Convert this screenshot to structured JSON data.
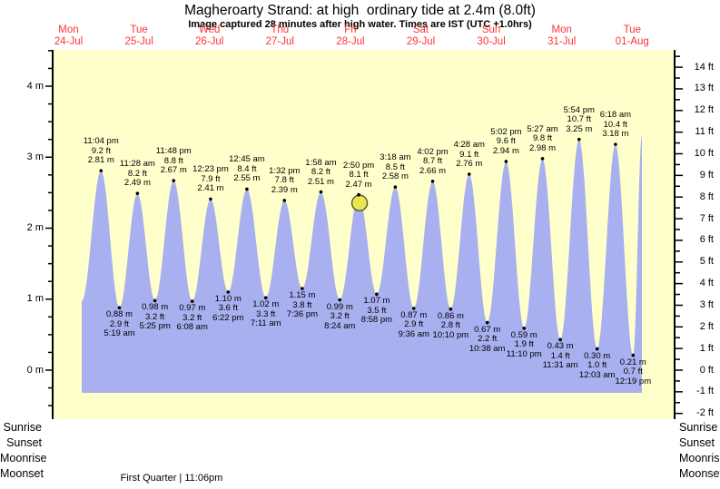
{
  "chart_data": {
    "type": "area",
    "title": "Magheroarty Strand: at high  ordinary tide at 2.4m (8.0ft)",
    "subtitle": "Image captured 28 minutes after high water. Times are IST (UTC +1.0hrs)",
    "days": [
      {
        "dow": "Mon",
        "date": "24-Jul"
      },
      {
        "dow": "Tue",
        "date": "25-Jul"
      },
      {
        "dow": "Wed",
        "date": "26-Jul"
      },
      {
        "dow": "Thu",
        "date": "27-Jul"
      },
      {
        "dow": "Fri",
        "date": "28-Jul"
      },
      {
        "dow": "Sat",
        "date": "29-Jul"
      },
      {
        "dow": "Sun",
        "date": "30-Jul"
      },
      {
        "dow": "Mon",
        "date": "31-Jul"
      },
      {
        "dow": "Tue",
        "date": "01-Aug"
      }
    ],
    "y_axis_left": {
      "unit": "m",
      "tick_labels": [
        "4 m",
        "3 m",
        "2 m",
        "1 m",
        "0 m"
      ],
      "tick_values": [
        4,
        3,
        2,
        1,
        0
      ],
      "minor_step_m": 0.25
    },
    "y_axis_right": {
      "unit": "ft",
      "tick_labels": [
        "14 ft",
        "13 ft",
        "12 ft",
        "11 ft",
        "10 ft",
        "9 ft",
        "8 ft",
        "7 ft",
        "6 ft",
        "5 ft",
        "4 ft",
        "3 ft",
        "2 ft",
        "1 ft",
        "0 ft",
        "-1 ft",
        "-2 ft"
      ],
      "tick_values": [
        14,
        13,
        12,
        11,
        10,
        9,
        8,
        7,
        6,
        5,
        4,
        3,
        2,
        1,
        0,
        -1,
        -2
      ],
      "minor_step_ft": 0.5
    },
    "tide_events": [
      {
        "day": 0,
        "time": "11:04 pm",
        "type": "high",
        "height_m": "2.81",
        "height_ft": "9.2"
      },
      {
        "day": 1,
        "time": "5:19 am",
        "type": "low",
        "height_m": "0.88",
        "height_ft": "2.9"
      },
      {
        "day": 1,
        "time": "11:28 am",
        "type": "high",
        "height_m": "2.49",
        "height_ft": "8.2"
      },
      {
        "day": 1,
        "time": "5:25 pm",
        "type": "low",
        "height_m": "0.98",
        "height_ft": "3.2"
      },
      {
        "day": 1,
        "time": "11:48 pm",
        "type": "high",
        "height_m": "2.67",
        "height_ft": "8.8"
      },
      {
        "day": 2,
        "time": "6:08 am",
        "type": "low",
        "height_m": "0.97",
        "height_ft": "3.2"
      },
      {
        "day": 2,
        "time": "12:23 pm",
        "type": "high",
        "height_m": "2.41",
        "height_ft": "7.9"
      },
      {
        "day": 2,
        "time": "6:22 pm",
        "type": "low",
        "height_m": "1.10",
        "height_ft": "3.6"
      },
      {
        "day": 3,
        "time": "12:45 am",
        "type": "high",
        "height_m": "2.55",
        "height_ft": "8.4"
      },
      {
        "day": 3,
        "time": "7:11 am",
        "type": "low",
        "height_m": "1.02",
        "height_ft": "3.3"
      },
      {
        "day": 3,
        "time": "1:32 pm",
        "type": "high",
        "height_m": "2.39",
        "height_ft": "7.8"
      },
      {
        "day": 3,
        "time": "7:36 pm",
        "type": "low",
        "height_m": "1.15",
        "height_ft": "3.8"
      },
      {
        "day": 4,
        "time": "1:58 am",
        "type": "high",
        "height_m": "2.51",
        "height_ft": "8.2"
      },
      {
        "day": 4,
        "time": "8:24 am",
        "type": "low",
        "height_m": "0.99",
        "height_ft": "3.2"
      },
      {
        "day": 4,
        "time": "2:50 pm",
        "type": "high",
        "height_m": "2.47",
        "height_ft": "8.1",
        "current": true
      },
      {
        "day": 4,
        "time": "8:58 pm",
        "type": "low",
        "height_m": "1.07",
        "height_ft": "3.5"
      },
      {
        "day": 5,
        "time": "3:18 am",
        "type": "high",
        "height_m": "2.58",
        "height_ft": "8.5"
      },
      {
        "day": 5,
        "time": "9:36 am",
        "type": "low",
        "height_m": "0.87",
        "height_ft": "2.9"
      },
      {
        "day": 5,
        "time": "4:02 pm",
        "type": "high",
        "height_m": "2.66",
        "height_ft": "8.7"
      },
      {
        "day": 5,
        "time": "10:10 pm",
        "type": "low",
        "height_m": "0.86",
        "height_ft": "2.8"
      },
      {
        "day": 6,
        "time": "4:28 am",
        "type": "high",
        "height_m": "2.76",
        "height_ft": "9.1"
      },
      {
        "day": 6,
        "time": "10:38 am",
        "type": "low",
        "height_m": "0.67",
        "height_ft": "2.2"
      },
      {
        "day": 6,
        "time": "5:02 pm",
        "type": "high",
        "height_m": "2.94",
        "height_ft": "9.6"
      },
      {
        "day": 6,
        "time": "11:10 pm",
        "type": "low",
        "height_m": "0.59",
        "height_ft": "1.9"
      },
      {
        "day": 7,
        "time": "5:27 am",
        "type": "high",
        "height_m": "2.98",
        "height_ft": "9.8"
      },
      {
        "day": 7,
        "time": "11:31 am",
        "type": "low",
        "height_m": "0.43",
        "height_ft": "1.4"
      },
      {
        "day": 7,
        "time": "5:54 pm",
        "type": "high",
        "height_m": "3.25",
        "height_ft": "10.7"
      },
      {
        "day": 8,
        "time": "12:03 am",
        "type": "low",
        "height_m": "0.30",
        "height_ft": "1.0"
      },
      {
        "day": 8,
        "time": "6:18 am",
        "type": "high",
        "height_m": "3.18",
        "height_ft": "10.4"
      },
      {
        "day": 8,
        "time": "12:19 pm",
        "type": "low",
        "height_m": "0.21",
        "height_ft": "0.7"
      }
    ],
    "colors": {
      "plot_bg": "#ffffcc",
      "tide_fill": "#a8b0f0",
      "day_label": "#ff3333",
      "axis": "#000000",
      "marker_fill": "#ece64e",
      "marker_stroke": "#555533"
    }
  },
  "astro": {
    "event_labels": [
      "Sunrise",
      "Sunset",
      "Moonrise",
      "Moonset"
    ],
    "moon_phase": "First Quarter | 11:06pm"
  }
}
